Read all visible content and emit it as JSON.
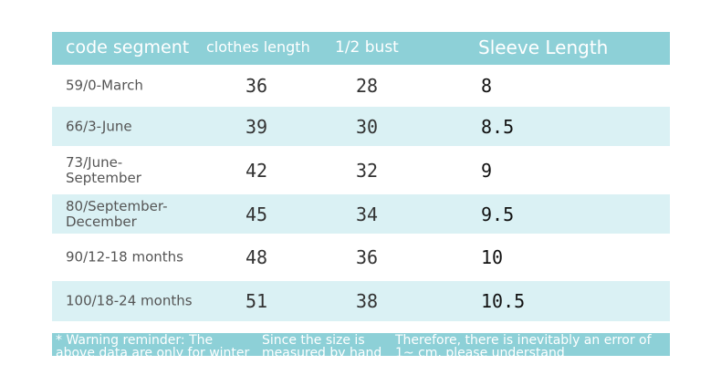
{
  "table": {
    "header": [
      "code segment",
      "clothes length",
      "1/2 bust",
      "Sleeve Length"
    ],
    "rows": [
      [
        "59/0-March",
        36,
        28,
        8
      ],
      [
        "66/3-June",
        39,
        30,
        8.5
      ],
      [
        "73/June-September",
        42,
        32,
        9
      ],
      [
        "80/September-December",
        45,
        34,
        9.5
      ],
      [
        "90/12-18 months",
        48,
        36,
        10
      ],
      [
        "100/18-24 months",
        51,
        38,
        10.5
      ]
    ]
  },
  "footer": [
    "* Warning reminder: The above data are only for winter exams",
    "Since the size is measured by hand",
    "Therefore, there is inevitably an error of 1~ cm, please understand"
  ]
}
